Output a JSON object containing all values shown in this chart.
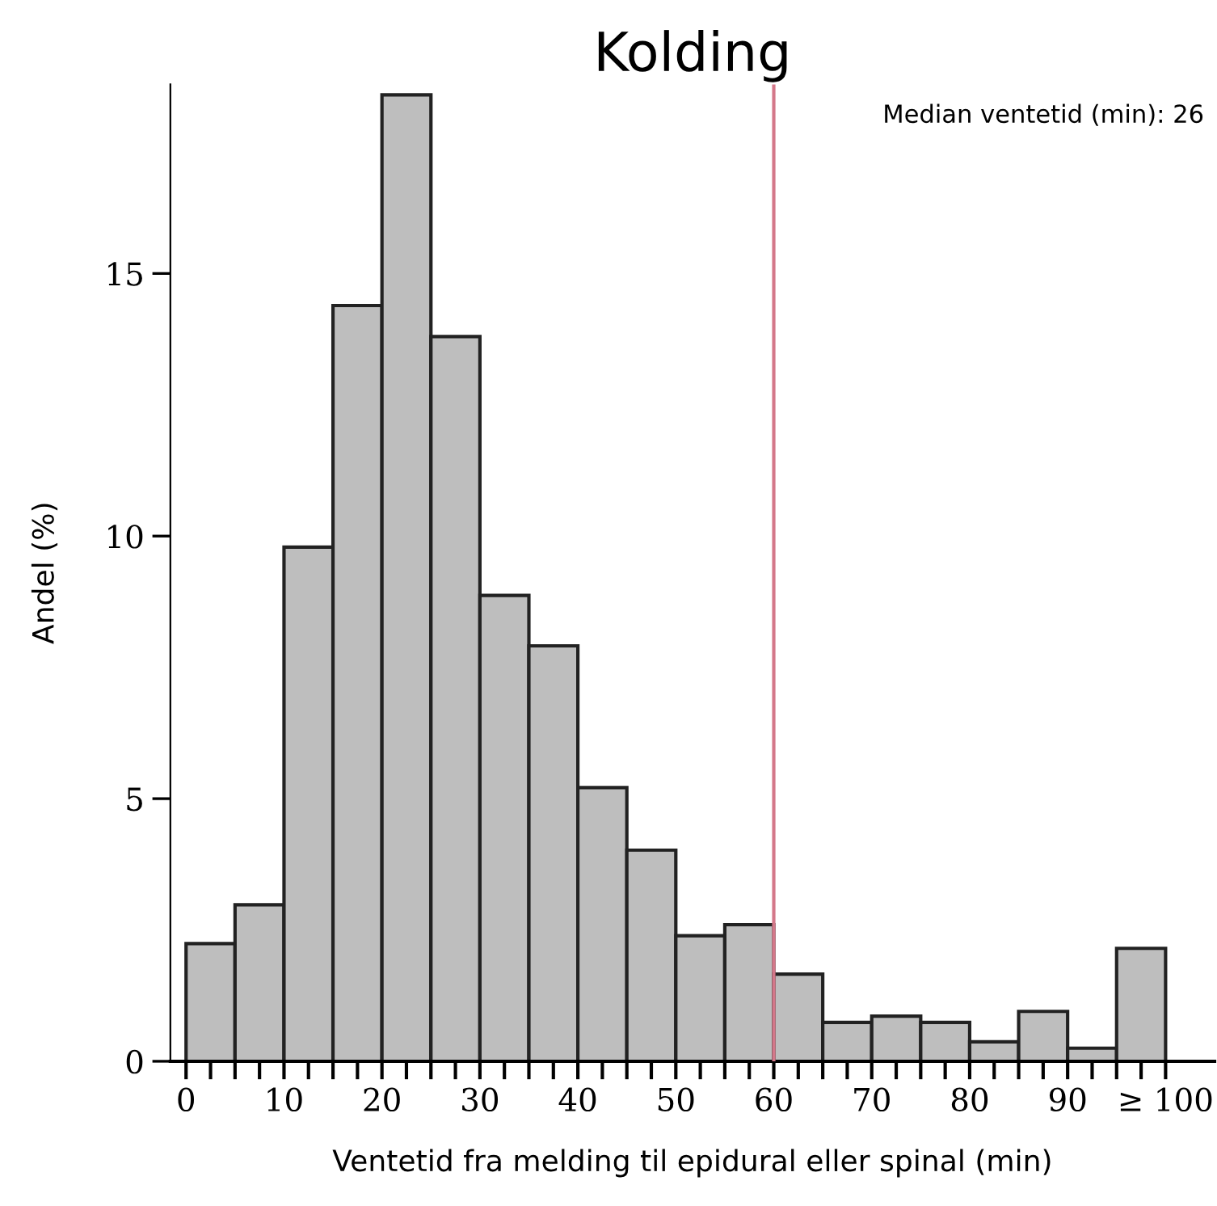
{
  "chart_data": {
    "type": "histogram",
    "title": "Kolding",
    "xlabel": "Ventetid fra melding til epidural eller spinal (min)",
    "ylabel": "Andel (%)",
    "bins": [
      0,
      5,
      10,
      15,
      20,
      25,
      30,
      35,
      40,
      45,
      50,
      55,
      60,
      65,
      70,
      75,
      80,
      85,
      90,
      95,
      100
    ],
    "values": [
      2.24,
      2.98,
      9.79,
      14.39,
      18.4,
      13.8,
      8.87,
      7.91,
      5.21,
      4.02,
      2.39,
      2.6,
      1.66,
      0.74,
      0.86,
      0.74,
      0.37,
      0.95,
      0.25,
      2.15
    ],
    "color": "#bebebe",
    "xlim": [
      -1.6,
      105
    ],
    "ylim": [
      0,
      18.6
    ],
    "xticks": [
      0,
      {
        "value": 2.5,
        "label": null
      },
      {
        "value": 5,
        "label": null
      },
      {
        "value": 7.5,
        "label": null
      },
      10,
      {
        "value": 12.5,
        "label": null
      },
      {
        "value": 15,
        "label": null
      },
      {
        "value": 17.5,
        "label": null
      },
      20,
      {
        "value": 22.5,
        "label": null
      },
      {
        "value": 25,
        "label": null
      },
      {
        "value": 27.5,
        "label": null
      },
      30,
      {
        "value": 32.5,
        "label": null
      },
      {
        "value": 35,
        "label": null
      },
      {
        "value": 37.5,
        "label": null
      },
      40,
      {
        "value": 42.5,
        "label": null
      },
      {
        "value": 45,
        "label": null
      },
      {
        "value": 47.5,
        "label": null
      },
      50,
      {
        "value": 52.5,
        "label": null
      },
      {
        "value": 55,
        "label": null
      },
      {
        "value": 57.5,
        "label": null
      },
      60,
      {
        "value": 62.5,
        "label": null
      },
      {
        "value": 65,
        "label": null
      },
      {
        "value": 67.5,
        "label": null
      },
      70,
      {
        "value": 72.5,
        "label": null
      },
      {
        "value": 75,
        "label": null
      },
      {
        "value": 77.5,
        "label": null
      },
      80,
      {
        "value": 82.5,
        "label": null
      },
      {
        "value": 85,
        "label": null
      },
      {
        "value": 87.5,
        "label": null
      },
      90,
      {
        "value": 92.5,
        "label": null
      },
      {
        "value": 95,
        "label": null
      },
      {
        "value": 97.5,
        "label": null
      },
      {
        "value": 100,
        "label": "≥ 100"
      }
    ],
    "yticks": [
      0,
      5,
      10,
      15
    ],
    "ref_lines": [
      {
        "axis": "x",
        "value": 60,
        "color": "#d4788a"
      }
    ],
    "annotations": [
      "Median ventetid (min): 26"
    ],
    "grid": false,
    "legend": false
  }
}
